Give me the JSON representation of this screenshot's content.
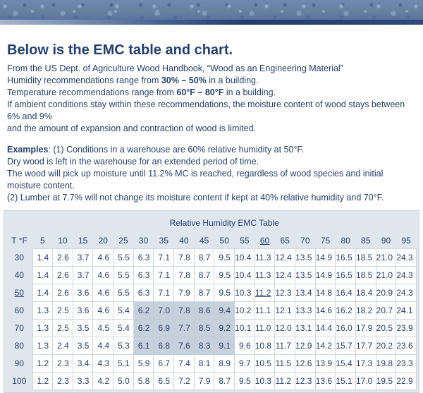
{
  "colors": {
    "text": "#27406b",
    "table_bg": "#dfe6ed",
    "highlight": "#c7d1dc",
    "banner_base": "#6680aa",
    "stripe_dark": "#223e6d"
  },
  "header": {
    "title": "Below is the EMC table and chart."
  },
  "intro": {
    "lines": [
      [
        {
          "t": "From the US Dept. of Agriculture Wood Handbook, “Wood as an Engineering Material”"
        }
      ],
      [
        {
          "t": "Humidity recommendations range from "
        },
        {
          "t": "30% – 50%",
          "b": 1
        },
        {
          "t": " in a building."
        }
      ],
      [
        {
          "t": "Temperature recommendations range from "
        },
        {
          "t": "60°F – 80°F",
          "b": 1
        },
        {
          "t": " in a building."
        }
      ],
      [
        {
          "t": "If ambient conditions stay within these recommendations, the moisture content of wood stays between 6% and 9%"
        }
      ],
      [
        {
          "t": "and the amount of expansion and contraction of wood is limited."
        }
      ]
    ]
  },
  "examples": {
    "lines": [
      [
        {
          "t": "Examples",
          "b": 1
        },
        {
          "t": ": (1) Conditions in a warehouse are 60% relative humidity at 50°F."
        }
      ],
      [
        {
          "t": "Dry wood is left in the warehouse for an extended period of time."
        }
      ],
      [
        {
          "t": "The wood will pick up moisture until 11.2% MC is reached, regardless of wood species and initial moisture content."
        }
      ],
      [
        {
          "t": "(2) Lumber at 7.7% will not change its moisture content if kept at 40% relative humidity and 70°F."
        }
      ]
    ]
  },
  "chart_data": {
    "type": "table",
    "title": "Relative Humidity EMC Table",
    "corner_label": "T °F",
    "columns": [
      "5",
      "10",
      "15",
      "20",
      "25",
      "30",
      "35",
      "40",
      "45",
      "50",
      "55",
      "60",
      "65",
      "70",
      "75",
      "80",
      "85",
      "90",
      "95"
    ],
    "bold_columns": [
      "30",
      "35",
      "40",
      "45",
      "50"
    ],
    "underlined_column": "60",
    "bold_row_labels": [
      "60",
      "70",
      "80"
    ],
    "underlined_row_label": "50",
    "underlined_cell": {
      "row": "50",
      "column": "60"
    },
    "highlight_zone": {
      "rows": [
        "60",
        "70",
        "80"
      ],
      "columns": [
        "30",
        "35",
        "40",
        "45",
        "50"
      ]
    },
    "rows": [
      {
        "label": "30",
        "values": [
          "1.4",
          "2.6",
          "3.7",
          "4.6",
          "5.5",
          "6.3",
          "7.1",
          "7.8",
          "8.7",
          "9.5",
          "10.4",
          "11.3",
          "12.4",
          "13.5",
          "14.9",
          "16.5",
          "18.5",
          "21.0",
          "24.3"
        ]
      },
      {
        "label": "40",
        "values": [
          "1.4",
          "2.6",
          "3.7",
          "4.6",
          "5.5",
          "6.3",
          "7.1",
          "7.8",
          "8.7",
          "9.5",
          "10.4",
          "11.3",
          "12.4",
          "13.5",
          "14.9",
          "16.5",
          "18.5",
          "21.0",
          "24.3"
        ]
      },
      {
        "label": "50",
        "values": [
          "1.4",
          "2.6",
          "3.6",
          "4.6",
          "5.5",
          "6.3",
          "7.1",
          "7.9",
          "8.7",
          "9.5",
          "10.3",
          "11.2",
          "12.3",
          "13.4",
          "14.8",
          "16.4",
          "18.4",
          "20.9",
          "24.3"
        ]
      },
      {
        "label": "60",
        "values": [
          "1.3",
          "2.5",
          "3.6",
          "4.6",
          "5.4",
          "6.2",
          "7.0",
          "7.8",
          "8.6",
          "9.4",
          "10.2",
          "11.1",
          "12.1",
          "13.3",
          "14.6",
          "16.2",
          "18.2",
          "20.7",
          "24.1"
        ]
      },
      {
        "label": "70",
        "values": [
          "1.3",
          "2.5",
          "3.5",
          "4.5",
          "5.4",
          "6.2",
          "6.9",
          "7.7",
          "8.5",
          "9.2",
          "10.1",
          "11.0",
          "12.0",
          "13.1",
          "14.4",
          "16.0",
          "17.9",
          "20.5",
          "23.9"
        ]
      },
      {
        "label": "80",
        "values": [
          "1.3",
          "2.4",
          "3.5",
          "4.4",
          "5.3",
          "6.1",
          "6.8",
          "7.6",
          "8.3",
          "9.1",
          "9.6",
          "10.8",
          "11.7",
          "12.9",
          "14.2",
          "15.7",
          "17.7",
          "20.2",
          "23.6"
        ]
      },
      {
        "label": "90",
        "values": [
          "1.2",
          "2.3",
          "3.4",
          "4.3",
          "5.1",
          "5.9",
          "6.7",
          "7.4",
          "8.1",
          "8.9",
          "9.7",
          "10.5",
          "11.5",
          "12.6",
          "13.9",
          "15.4",
          "17.3",
          "19.8",
          "23.3"
        ]
      },
      {
        "label": "100",
        "values": [
          "1.2",
          "2.3",
          "3.3",
          "4.2",
          "5.0",
          "5.8",
          "6.5",
          "7.2",
          "7.9",
          "8.7",
          "9.5",
          "10.3",
          "11.2",
          "12.3",
          "13.6",
          "15.1",
          "17.0",
          "19.5",
          "22.9"
        ]
      }
    ]
  }
}
